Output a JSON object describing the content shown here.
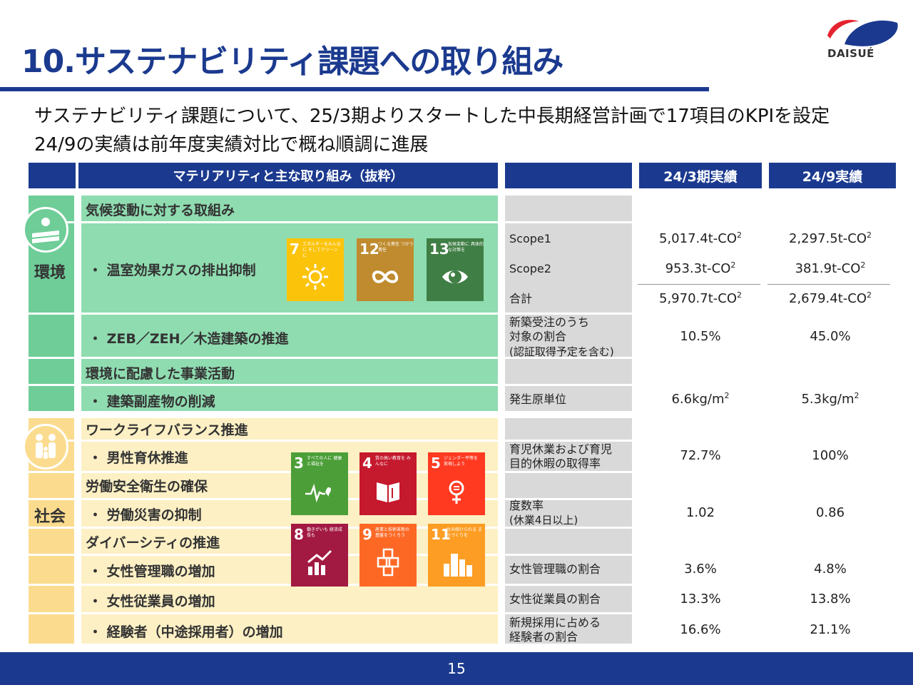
{
  "header": {
    "title": "10.サステナビリティ課題への取り組み",
    "logo_text": "DAISUÉ"
  },
  "subtitle": [
    "サステナビリティ課題について、25/3期よりスタートした中長期経営計画で17項目のKPIを設定",
    "24/9の実績は前年度実績対比で概ね順調に進展"
  ],
  "table_headers": {
    "materiality": "マテリアリティと主な取り組み（抜粋）",
    "col_fy24_3": "24/3期実績",
    "col_fy24_9": "24/9実績"
  },
  "environment": {
    "label": "環境",
    "category1": "気候変動に対する取組み",
    "item_ghg": "・ 温室効果ガスの排出抑制",
    "item_zeb": "・ ZEB／ZEH／木造建築の推進",
    "category2": "環境に配慮した事業活動",
    "item_waste": "・ 建築副産物の削減"
  },
  "social": {
    "label": "社会",
    "category1": "ワークライフバランス推進",
    "item_leave": "・ 男性育休推進",
    "category2": "労働安全衛生の確保",
    "item_accident": "・ 労働災害の抑制",
    "category3": "ダイバーシティの推進",
    "item_female_mgr": "・ 女性管理職の増加",
    "item_female_emp": "・ 女性従業員の増加",
    "item_experienced": "・ 経験者（中途採用者）の増加"
  },
  "sdg_icons": [
    {
      "num": "7",
      "label": "エネルギーをみんなに そしてクリーンに",
      "color": "#FCC30B",
      "icon": "sun-icon"
    },
    {
      "num": "12",
      "label": "つくる責任 つかう責任",
      "color": "#BF8B2E",
      "icon": "infinity-icon"
    },
    {
      "num": "13",
      "label": "気候変動に 具体的な対策を",
      "color": "#3F7E44",
      "icon": "eye-globe-icon"
    },
    {
      "num": "3",
      "label": "すべての人に 健康と福祉を",
      "color": "#4C9F38",
      "icon": "heartbeat-icon"
    },
    {
      "num": "4",
      "label": "質の高い教育を みんなに",
      "color": "#C5192D",
      "icon": "book-icon"
    },
    {
      "num": "5",
      "label": "ジェンダー平等を 実現しよう",
      "color": "#FF3A21",
      "icon": "gender-icon"
    },
    {
      "num": "8",
      "label": "働きがいも 経済成長も",
      "color": "#A21942",
      "icon": "growth-chart-icon"
    },
    {
      "num": "9",
      "label": "産業と技術革新の 基盤をつくろう",
      "color": "#FD6925",
      "icon": "cubes-icon"
    },
    {
      "num": "11",
      "label": "住み続けられる まちづくりを",
      "color": "#FD9D24",
      "icon": "city-icon"
    }
  ],
  "kpis": {
    "scope1": {
      "label": "Scope1",
      "fy24_3": "5,017.4t-CO",
      "fy24_9": "2,297.5t-CO"
    },
    "scope2": {
      "label": "Scope2",
      "fy24_3": "953.3t-CO",
      "fy24_9": "381.9t-CO"
    },
    "total": {
      "label": "合計",
      "fy24_3": "5,970.7t-CO",
      "fy24_9": "2,679.4t-CO"
    },
    "zeb": {
      "label_l1": "新築受注のうち",
      "label_l2": "対象の割合",
      "label_l3": "(認証取得予定を含む)",
      "fy24_3": "10.5%",
      "fy24_9": "45.0%"
    },
    "waste": {
      "label": "発生原単位",
      "fy24_3": "6.6kg/m",
      "fy24_9": "5.3kg/m"
    },
    "leave": {
      "label_l1": "育児休業および育児",
      "label_l2": "目的休暇の取得率",
      "fy24_3": "72.7%",
      "fy24_9": "100%"
    },
    "accident": {
      "label_l1": "度数率",
      "label_l2": "(休業4日以上)",
      "fy24_3": "1.02",
      "fy24_9": "0.86"
    },
    "female_mgr": {
      "label": "女性管理職の割合",
      "fy24_3": "3.6%",
      "fy24_9": "4.8%"
    },
    "female_emp": {
      "label": "女性従業員の割合",
      "fy24_3": "13.3%",
      "fy24_9": "13.8%"
    },
    "experienced": {
      "label_l1": "新規採用に占める",
      "label_l2": "経験者の割合",
      "fy24_3": "16.6%",
      "fy24_9": "21.1%"
    }
  },
  "superscripts": {
    "co2": "2",
    "m2": "2"
  },
  "footer": {
    "page_number": "15"
  }
}
